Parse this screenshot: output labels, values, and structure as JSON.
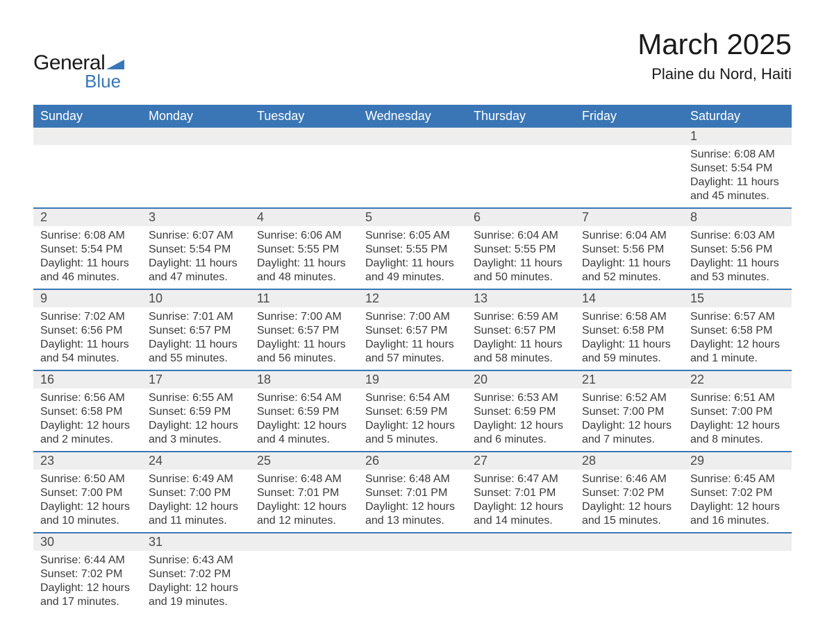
{
  "logo": {
    "text1": "General",
    "text2": "Blue",
    "shape_color": "#3a76b5"
  },
  "title": "March 2025",
  "location": "Plaine du Nord, Haiti",
  "colors": {
    "header_bg": "#3a76b5",
    "header_text": "#ffffff",
    "daynum_bg": "#eeeeee",
    "daynum_text": "#4a4a4a",
    "info_text": "#3a3a3a",
    "row_divider": "#3a76b5",
    "page_bg": "#ffffff"
  },
  "typography": {
    "title_fontsize": 42,
    "location_fontsize": 22,
    "dayheader_fontsize": 18,
    "daynum_fontsize": 18,
    "info_fontsize": 16,
    "font_family": "Arial"
  },
  "day_headers": [
    "Sunday",
    "Monday",
    "Tuesday",
    "Wednesday",
    "Thursday",
    "Friday",
    "Saturday"
  ],
  "weeks": [
    [
      {
        "n": "",
        "sunrise": "",
        "sunset": "",
        "daylight": ""
      },
      {
        "n": "",
        "sunrise": "",
        "sunset": "",
        "daylight": ""
      },
      {
        "n": "",
        "sunrise": "",
        "sunset": "",
        "daylight": ""
      },
      {
        "n": "",
        "sunrise": "",
        "sunset": "",
        "daylight": ""
      },
      {
        "n": "",
        "sunrise": "",
        "sunset": "",
        "daylight": ""
      },
      {
        "n": "",
        "sunrise": "",
        "sunset": "",
        "daylight": ""
      },
      {
        "n": "1",
        "sunrise": "Sunrise: 6:08 AM",
        "sunset": "Sunset: 5:54 PM",
        "daylight": "Daylight: 11 hours and 45 minutes."
      }
    ],
    [
      {
        "n": "2",
        "sunrise": "Sunrise: 6:08 AM",
        "sunset": "Sunset: 5:54 PM",
        "daylight": "Daylight: 11 hours and 46 minutes."
      },
      {
        "n": "3",
        "sunrise": "Sunrise: 6:07 AM",
        "sunset": "Sunset: 5:54 PM",
        "daylight": "Daylight: 11 hours and 47 minutes."
      },
      {
        "n": "4",
        "sunrise": "Sunrise: 6:06 AM",
        "sunset": "Sunset: 5:55 PM",
        "daylight": "Daylight: 11 hours and 48 minutes."
      },
      {
        "n": "5",
        "sunrise": "Sunrise: 6:05 AM",
        "sunset": "Sunset: 5:55 PM",
        "daylight": "Daylight: 11 hours and 49 minutes."
      },
      {
        "n": "6",
        "sunrise": "Sunrise: 6:04 AM",
        "sunset": "Sunset: 5:55 PM",
        "daylight": "Daylight: 11 hours and 50 minutes."
      },
      {
        "n": "7",
        "sunrise": "Sunrise: 6:04 AM",
        "sunset": "Sunset: 5:56 PM",
        "daylight": "Daylight: 11 hours and 52 minutes."
      },
      {
        "n": "8",
        "sunrise": "Sunrise: 6:03 AM",
        "sunset": "Sunset: 5:56 PM",
        "daylight": "Daylight: 11 hours and 53 minutes."
      }
    ],
    [
      {
        "n": "9",
        "sunrise": "Sunrise: 7:02 AM",
        "sunset": "Sunset: 6:56 PM",
        "daylight": "Daylight: 11 hours and 54 minutes."
      },
      {
        "n": "10",
        "sunrise": "Sunrise: 7:01 AM",
        "sunset": "Sunset: 6:57 PM",
        "daylight": "Daylight: 11 hours and 55 minutes."
      },
      {
        "n": "11",
        "sunrise": "Sunrise: 7:00 AM",
        "sunset": "Sunset: 6:57 PM",
        "daylight": "Daylight: 11 hours and 56 minutes."
      },
      {
        "n": "12",
        "sunrise": "Sunrise: 7:00 AM",
        "sunset": "Sunset: 6:57 PM",
        "daylight": "Daylight: 11 hours and 57 minutes."
      },
      {
        "n": "13",
        "sunrise": "Sunrise: 6:59 AM",
        "sunset": "Sunset: 6:57 PM",
        "daylight": "Daylight: 11 hours and 58 minutes."
      },
      {
        "n": "14",
        "sunrise": "Sunrise: 6:58 AM",
        "sunset": "Sunset: 6:58 PM",
        "daylight": "Daylight: 11 hours and 59 minutes."
      },
      {
        "n": "15",
        "sunrise": "Sunrise: 6:57 AM",
        "sunset": "Sunset: 6:58 PM",
        "daylight": "Daylight: 12 hours and 1 minute."
      }
    ],
    [
      {
        "n": "16",
        "sunrise": "Sunrise: 6:56 AM",
        "sunset": "Sunset: 6:58 PM",
        "daylight": "Daylight: 12 hours and 2 minutes."
      },
      {
        "n": "17",
        "sunrise": "Sunrise: 6:55 AM",
        "sunset": "Sunset: 6:59 PM",
        "daylight": "Daylight: 12 hours and 3 minutes."
      },
      {
        "n": "18",
        "sunrise": "Sunrise: 6:54 AM",
        "sunset": "Sunset: 6:59 PM",
        "daylight": "Daylight: 12 hours and 4 minutes."
      },
      {
        "n": "19",
        "sunrise": "Sunrise: 6:54 AM",
        "sunset": "Sunset: 6:59 PM",
        "daylight": "Daylight: 12 hours and 5 minutes."
      },
      {
        "n": "20",
        "sunrise": "Sunrise: 6:53 AM",
        "sunset": "Sunset: 6:59 PM",
        "daylight": "Daylight: 12 hours and 6 minutes."
      },
      {
        "n": "21",
        "sunrise": "Sunrise: 6:52 AM",
        "sunset": "Sunset: 7:00 PM",
        "daylight": "Daylight: 12 hours and 7 minutes."
      },
      {
        "n": "22",
        "sunrise": "Sunrise: 6:51 AM",
        "sunset": "Sunset: 7:00 PM",
        "daylight": "Daylight: 12 hours and 8 minutes."
      }
    ],
    [
      {
        "n": "23",
        "sunrise": "Sunrise: 6:50 AM",
        "sunset": "Sunset: 7:00 PM",
        "daylight": "Daylight: 12 hours and 10 minutes."
      },
      {
        "n": "24",
        "sunrise": "Sunrise: 6:49 AM",
        "sunset": "Sunset: 7:00 PM",
        "daylight": "Daylight: 12 hours and 11 minutes."
      },
      {
        "n": "25",
        "sunrise": "Sunrise: 6:48 AM",
        "sunset": "Sunset: 7:01 PM",
        "daylight": "Daylight: 12 hours and 12 minutes."
      },
      {
        "n": "26",
        "sunrise": "Sunrise: 6:48 AM",
        "sunset": "Sunset: 7:01 PM",
        "daylight": "Daylight: 12 hours and 13 minutes."
      },
      {
        "n": "27",
        "sunrise": "Sunrise: 6:47 AM",
        "sunset": "Sunset: 7:01 PM",
        "daylight": "Daylight: 12 hours and 14 minutes."
      },
      {
        "n": "28",
        "sunrise": "Sunrise: 6:46 AM",
        "sunset": "Sunset: 7:02 PM",
        "daylight": "Daylight: 12 hours and 15 minutes."
      },
      {
        "n": "29",
        "sunrise": "Sunrise: 6:45 AM",
        "sunset": "Sunset: 7:02 PM",
        "daylight": "Daylight: 12 hours and 16 minutes."
      }
    ],
    [
      {
        "n": "30",
        "sunrise": "Sunrise: 6:44 AM",
        "sunset": "Sunset: 7:02 PM",
        "daylight": "Daylight: 12 hours and 17 minutes."
      },
      {
        "n": "31",
        "sunrise": "Sunrise: 6:43 AM",
        "sunset": "Sunset: 7:02 PM",
        "daylight": "Daylight: 12 hours and 19 minutes."
      },
      {
        "n": "",
        "sunrise": "",
        "sunset": "",
        "daylight": ""
      },
      {
        "n": "",
        "sunrise": "",
        "sunset": "",
        "daylight": ""
      },
      {
        "n": "",
        "sunrise": "",
        "sunset": "",
        "daylight": ""
      },
      {
        "n": "",
        "sunrise": "",
        "sunset": "",
        "daylight": ""
      },
      {
        "n": "",
        "sunrise": "",
        "sunset": "",
        "daylight": ""
      }
    ]
  ]
}
